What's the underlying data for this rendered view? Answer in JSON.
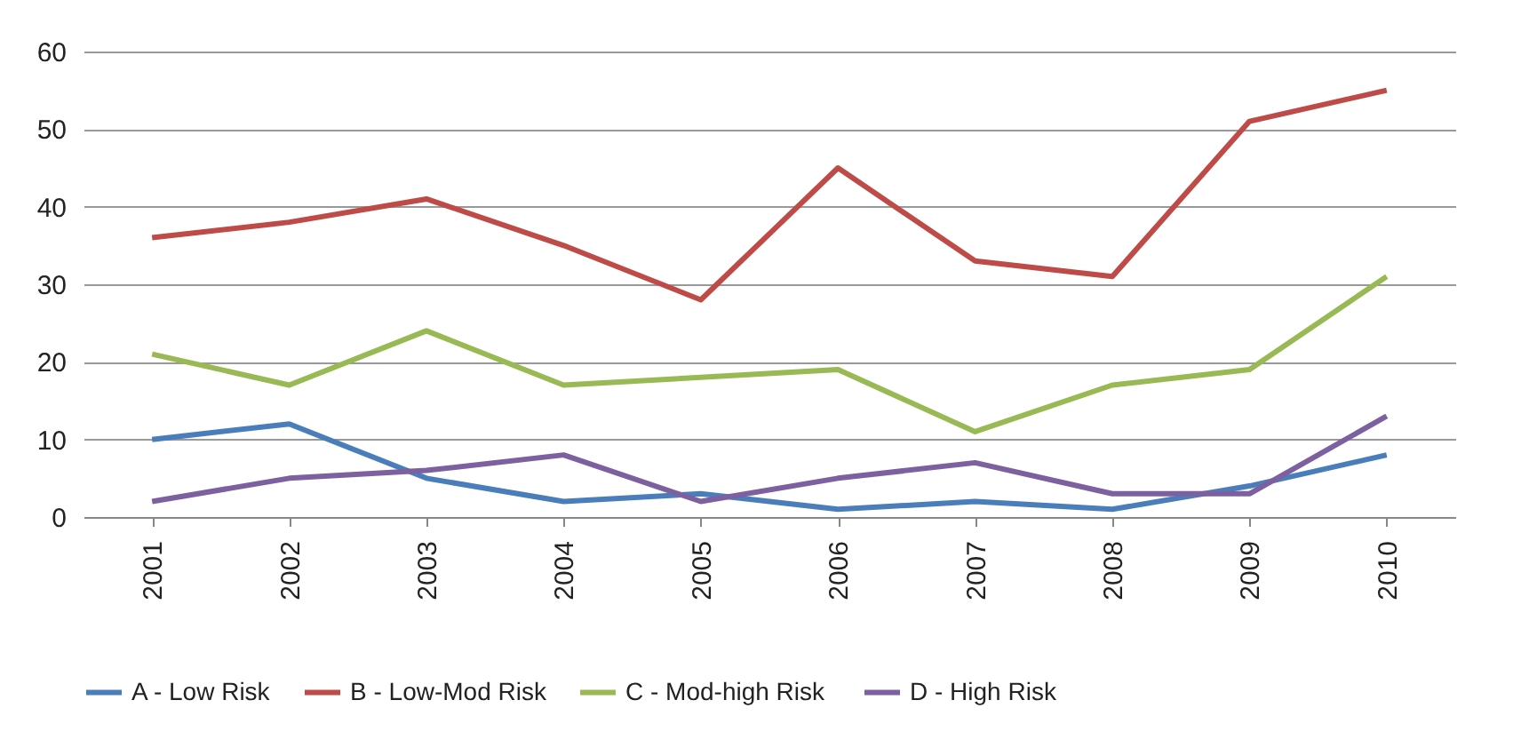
{
  "chart_data": {
    "type": "line",
    "categories": [
      "2001",
      "2002",
      "2003",
      "2004",
      "2005",
      "2006",
      "2007",
      "2008",
      "2009",
      "2010"
    ],
    "series": [
      {
        "name": "A - Low Risk",
        "color": "#4a7ebb",
        "values": [
          10,
          12,
          5,
          2,
          3,
          1,
          2,
          1,
          4,
          8
        ]
      },
      {
        "name": "B - Low-Mod Risk",
        "color": "#be4b48",
        "values": [
          36,
          38,
          41,
          35,
          28,
          45,
          33,
          31,
          51,
          55
        ]
      },
      {
        "name": "C -  Mod-high Risk",
        "color": "#98b954",
        "values": [
          21,
          17,
          24,
          17,
          18,
          19,
          11,
          17,
          19,
          31
        ]
      },
      {
        "name": "D - High Risk",
        "color": "#7d60a0",
        "values": [
          2,
          5,
          6,
          8,
          2,
          5,
          7,
          3,
          3,
          13
        ]
      }
    ],
    "ylim": [
      0,
      60
    ],
    "yticks": [
      0,
      10,
      20,
      30,
      40,
      50,
      60
    ],
    "grid": "y",
    "legend": "bottom",
    "marker": "none",
    "line_style": "solid"
  }
}
